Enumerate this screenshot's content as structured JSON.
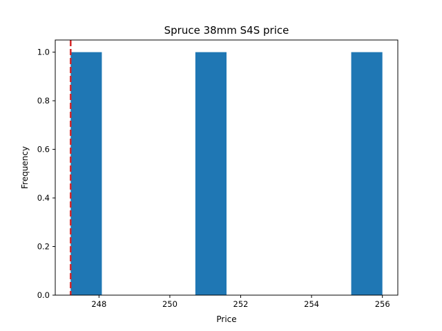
{
  "chart_data": {
    "type": "bar",
    "title": "Spruce 38mm S4S price",
    "xlabel": "Price",
    "ylabel": "Frequency",
    "xlim": [
      246.765,
      256.435
    ],
    "ylim": [
      0,
      1.05
    ],
    "xticks": [
      248,
      250,
      252,
      254,
      256
    ],
    "yticks": [
      0.0,
      0.2,
      0.4,
      0.6,
      0.8,
      1.0
    ],
    "xtick_labels": [
      "248",
      "250",
      "252",
      "254",
      "256"
    ],
    "ytick_labels": [
      "0.0",
      "0.2",
      "0.4",
      "0.6",
      "0.8",
      "1.0"
    ],
    "bins": [
      {
        "x0": 247.2,
        "x1": 248.08,
        "count": 1
      },
      {
        "x0": 248.08,
        "x1": 248.96,
        "count": 0
      },
      {
        "x0": 248.96,
        "x1": 249.84,
        "count": 0
      },
      {
        "x0": 249.84,
        "x1": 250.72,
        "count": 0
      },
      {
        "x0": 250.72,
        "x1": 251.6,
        "count": 1
      },
      {
        "x0": 251.6,
        "x1": 252.48,
        "count": 0
      },
      {
        "x0": 252.48,
        "x1": 253.36,
        "count": 0
      },
      {
        "x0": 253.36,
        "x1": 254.24,
        "count": 0
      },
      {
        "x0": 254.24,
        "x1": 255.12,
        "count": 0
      },
      {
        "x0": 255.12,
        "x1": 256.0,
        "count": 1
      }
    ],
    "reference_line": {
      "x": 247.2,
      "color": "#d62728",
      "style": "dashed"
    },
    "bar_color": "#1f77b4",
    "grid": false,
    "legend": "none"
  }
}
